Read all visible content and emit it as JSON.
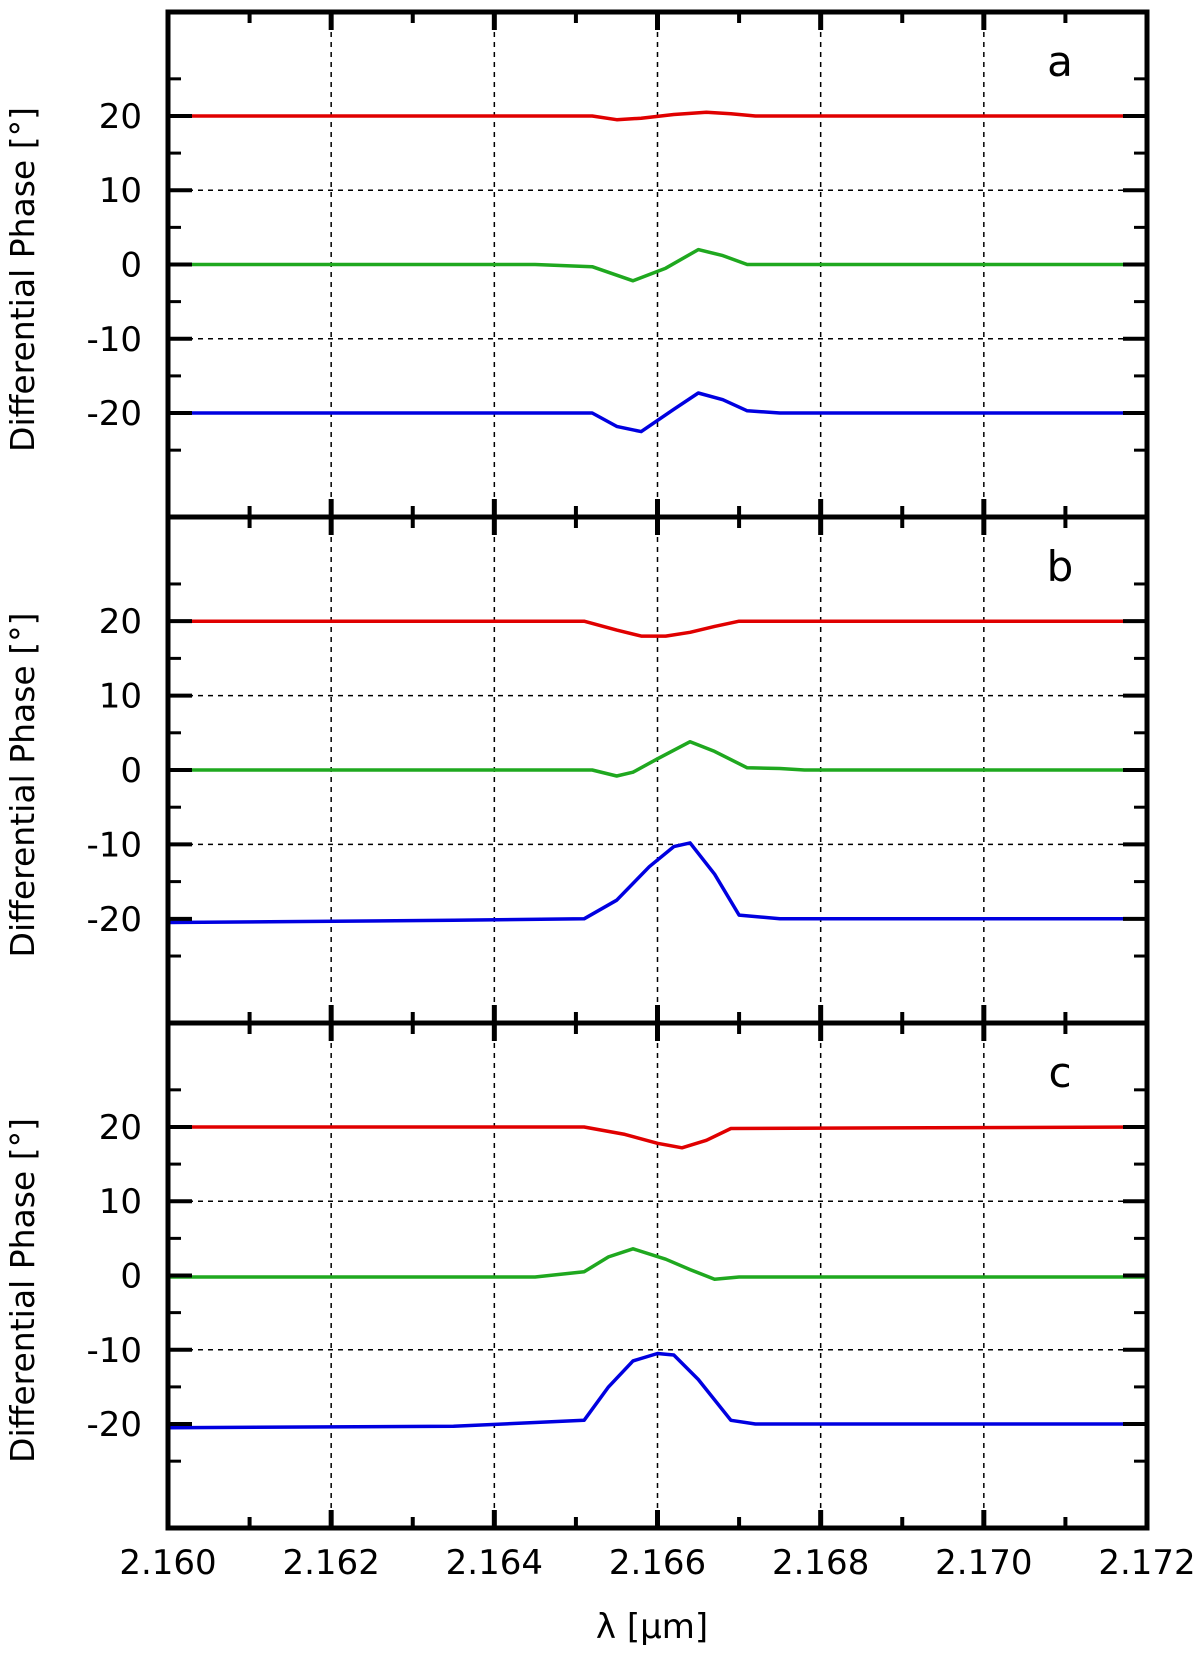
{
  "chart_data": {
    "type": "line",
    "xlabel": "λ [μm]",
    "xlim": [
      2.16,
      2.172
    ],
    "x_ticks": [
      "2.160",
      "2.162",
      "2.164",
      "2.166",
      "2.168",
      "2.170",
      "2.172"
    ],
    "grid": true,
    "colors": {
      "top": "#e00000",
      "middle": "#1fa81f",
      "bottom": "#0000e0"
    },
    "panels": [
      {
        "id": "a",
        "label": "a",
        "ylabel": "Differential Phase [°]",
        "ylim": [
          -34,
          34
        ],
        "y_ticks": [
          "20",
          "10",
          "0",
          "-10",
          "-20"
        ],
        "series": [
          {
            "color_key": "top",
            "x": [
              2.16,
              2.1652,
              2.1655,
              2.1658,
              2.1662,
              2.1666,
              2.1669,
              2.1672,
              2.172
            ],
            "y": [
              20,
              20,
              19.5,
              19.7,
              20.2,
              20.5,
              20.3,
              20,
              20
            ]
          },
          {
            "color_key": "middle",
            "x": [
              2.16,
              2.1645,
              2.1652,
              2.1657,
              2.1661,
              2.1665,
              2.1668,
              2.1671,
              2.1675,
              2.172
            ],
            "y": [
              0,
              0,
              -0.3,
              -2.2,
              -0.5,
              2.0,
              1.2,
              0,
              0,
              0
            ]
          },
          {
            "color_key": "bottom",
            "x": [
              2.16,
              2.1652,
              2.1655,
              2.1658,
              2.1662,
              2.1665,
              2.1668,
              2.1671,
              2.1675,
              2.172
            ],
            "y": [
              -20,
              -20,
              -21.8,
              -22.5,
              -19.5,
              -17.3,
              -18.2,
              -19.7,
              -20,
              -20
            ]
          }
        ]
      },
      {
        "id": "b",
        "label": "b",
        "ylabel": "Differential Phase [°]",
        "ylim": [
          -34,
          34
        ],
        "y_ticks": [
          "20",
          "10",
          "0",
          "-10",
          "-20"
        ],
        "series": [
          {
            "color_key": "top",
            "x": [
              2.16,
              2.1651,
              2.1655,
              2.1658,
              2.1661,
              2.1664,
              2.1667,
              2.167,
              2.172
            ],
            "y": [
              20,
              20,
              18.8,
              18,
              18,
              18.5,
              19.3,
              20,
              20
            ]
          },
          {
            "color_key": "middle",
            "x": [
              2.16,
              2.1652,
              2.1655,
              2.1657,
              2.166,
              2.1664,
              2.1667,
              2.1671,
              2.1675,
              2.1678,
              2.172
            ],
            "y": [
              0,
              0,
              -0.8,
              -0.3,
              1.5,
              3.8,
              2.5,
              0.3,
              0.2,
              0,
              0
            ]
          },
          {
            "color_key": "bottom",
            "x": [
              2.16,
              2.1635,
              2.1651,
              2.1655,
              2.1659,
              2.1662,
              2.1664,
              2.1667,
              2.167,
              2.1675,
              2.172
            ],
            "y": [
              -20.5,
              -20.2,
              -20,
              -17.5,
              -13,
              -10.3,
              -9.8,
              -14,
              -19.5,
              -20,
              -20
            ]
          }
        ]
      },
      {
        "id": "c",
        "label": "c",
        "ylabel": "Differential Phase [°]",
        "ylim": [
          -34,
          34
        ],
        "y_ticks": [
          "20",
          "10",
          "0",
          "-10",
          "-20"
        ],
        "series": [
          {
            "color_key": "top",
            "x": [
              2.16,
              2.1651,
              2.1656,
              2.166,
              2.1663,
              2.1666,
              2.1669,
              2.172
            ],
            "y": [
              20,
              20,
              19,
              17.8,
              17.2,
              18.2,
              19.8,
              20
            ]
          },
          {
            "color_key": "middle",
            "x": [
              2.16,
              2.1645,
              2.1651,
              2.1654,
              2.1657,
              2.1661,
              2.1664,
              2.1667,
              2.167,
              2.172
            ],
            "y": [
              -0.2,
              -0.2,
              0.5,
              2.5,
              3.6,
              2.2,
              0.8,
              -0.5,
              -0.2,
              -0.2
            ]
          },
          {
            "color_key": "bottom",
            "x": [
              2.16,
              2.1635,
              2.1651,
              2.1654,
              2.1657,
              2.166,
              2.1662,
              2.1665,
              2.1669,
              2.1672,
              2.172
            ],
            "y": [
              -20.5,
              -20.3,
              -19.5,
              -15,
              -11.5,
              -10.5,
              -10.7,
              -14,
              -19.5,
              -20,
              -20
            ]
          }
        ]
      }
    ]
  }
}
